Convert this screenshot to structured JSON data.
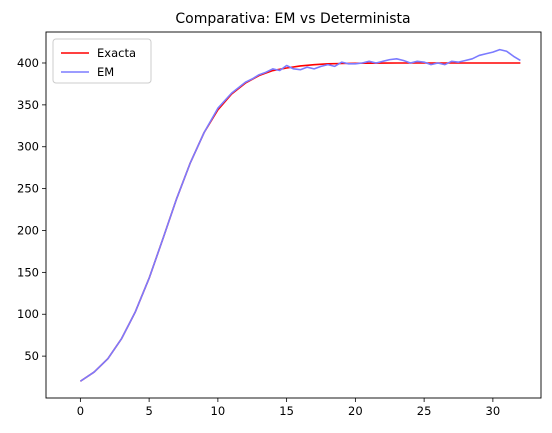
{
  "chart_data": {
    "type": "line",
    "title": "Comparativa: EM vs Determinista",
    "xlabel": "",
    "ylabel": "",
    "xlim": [
      -2.5,
      33.5
    ],
    "ylim": [
      0,
      437
    ],
    "xticks": [
      0,
      5,
      10,
      15,
      20,
      25,
      30
    ],
    "yticks": [
      50,
      100,
      150,
      200,
      250,
      300,
      350,
      400
    ],
    "legend_position": "upper left",
    "grid": false,
    "series": [
      {
        "name": "Exacta",
        "color": "#ff0000",
        "x": [
          0,
          1,
          2,
          3,
          4,
          5,
          6,
          7,
          8,
          9,
          10,
          11,
          12,
          13,
          14,
          15,
          16,
          17,
          18,
          19,
          20,
          21,
          22,
          23,
          24,
          25,
          26,
          27,
          28,
          29,
          30,
          31,
          32
        ],
        "y": [
          20,
          31,
          47,
          71,
          103,
          143,
          190,
          238,
          281,
          317,
          344,
          363,
          376,
          385,
          391,
          394,
          396.5,
          398,
          399,
          399.4,
          399.7,
          399.8,
          399.9,
          400,
          400,
          400,
          400,
          400,
          400,
          400,
          400,
          400,
          400
        ]
      },
      {
        "name": "EM",
        "color": "#7b7bff",
        "x": [
          0,
          1,
          2,
          3,
          4,
          5,
          6,
          7,
          8,
          9,
          10,
          11,
          12,
          12.5,
          13,
          13.5,
          14,
          14.5,
          15,
          15.5,
          16,
          16.5,
          17,
          17.5,
          18,
          18.5,
          19,
          19.5,
          20,
          20.5,
          21,
          21.5,
          22,
          22.5,
          23,
          23.5,
          24,
          24.5,
          25,
          25.5,
          26,
          26.5,
          27,
          27.5,
          28,
          28.5,
          29,
          29.5,
          30,
          30.5,
          31,
          31.5,
          32
        ],
        "y": [
          20,
          31,
          47,
          71,
          103,
          143,
          190,
          238,
          281,
          317,
          346,
          364,
          377,
          381,
          386,
          389,
          393,
          391,
          397,
          393,
          392,
          395,
          393,
          396,
          398,
          396,
          401,
          399,
          399,
          400,
          402,
          400,
          402,
          404,
          405,
          403,
          400,
          402,
          401,
          398,
          400,
          398,
          402,
          401,
          403,
          405,
          409,
          411,
          413,
          416,
          414,
          408,
          403
        ]
      }
    ]
  }
}
